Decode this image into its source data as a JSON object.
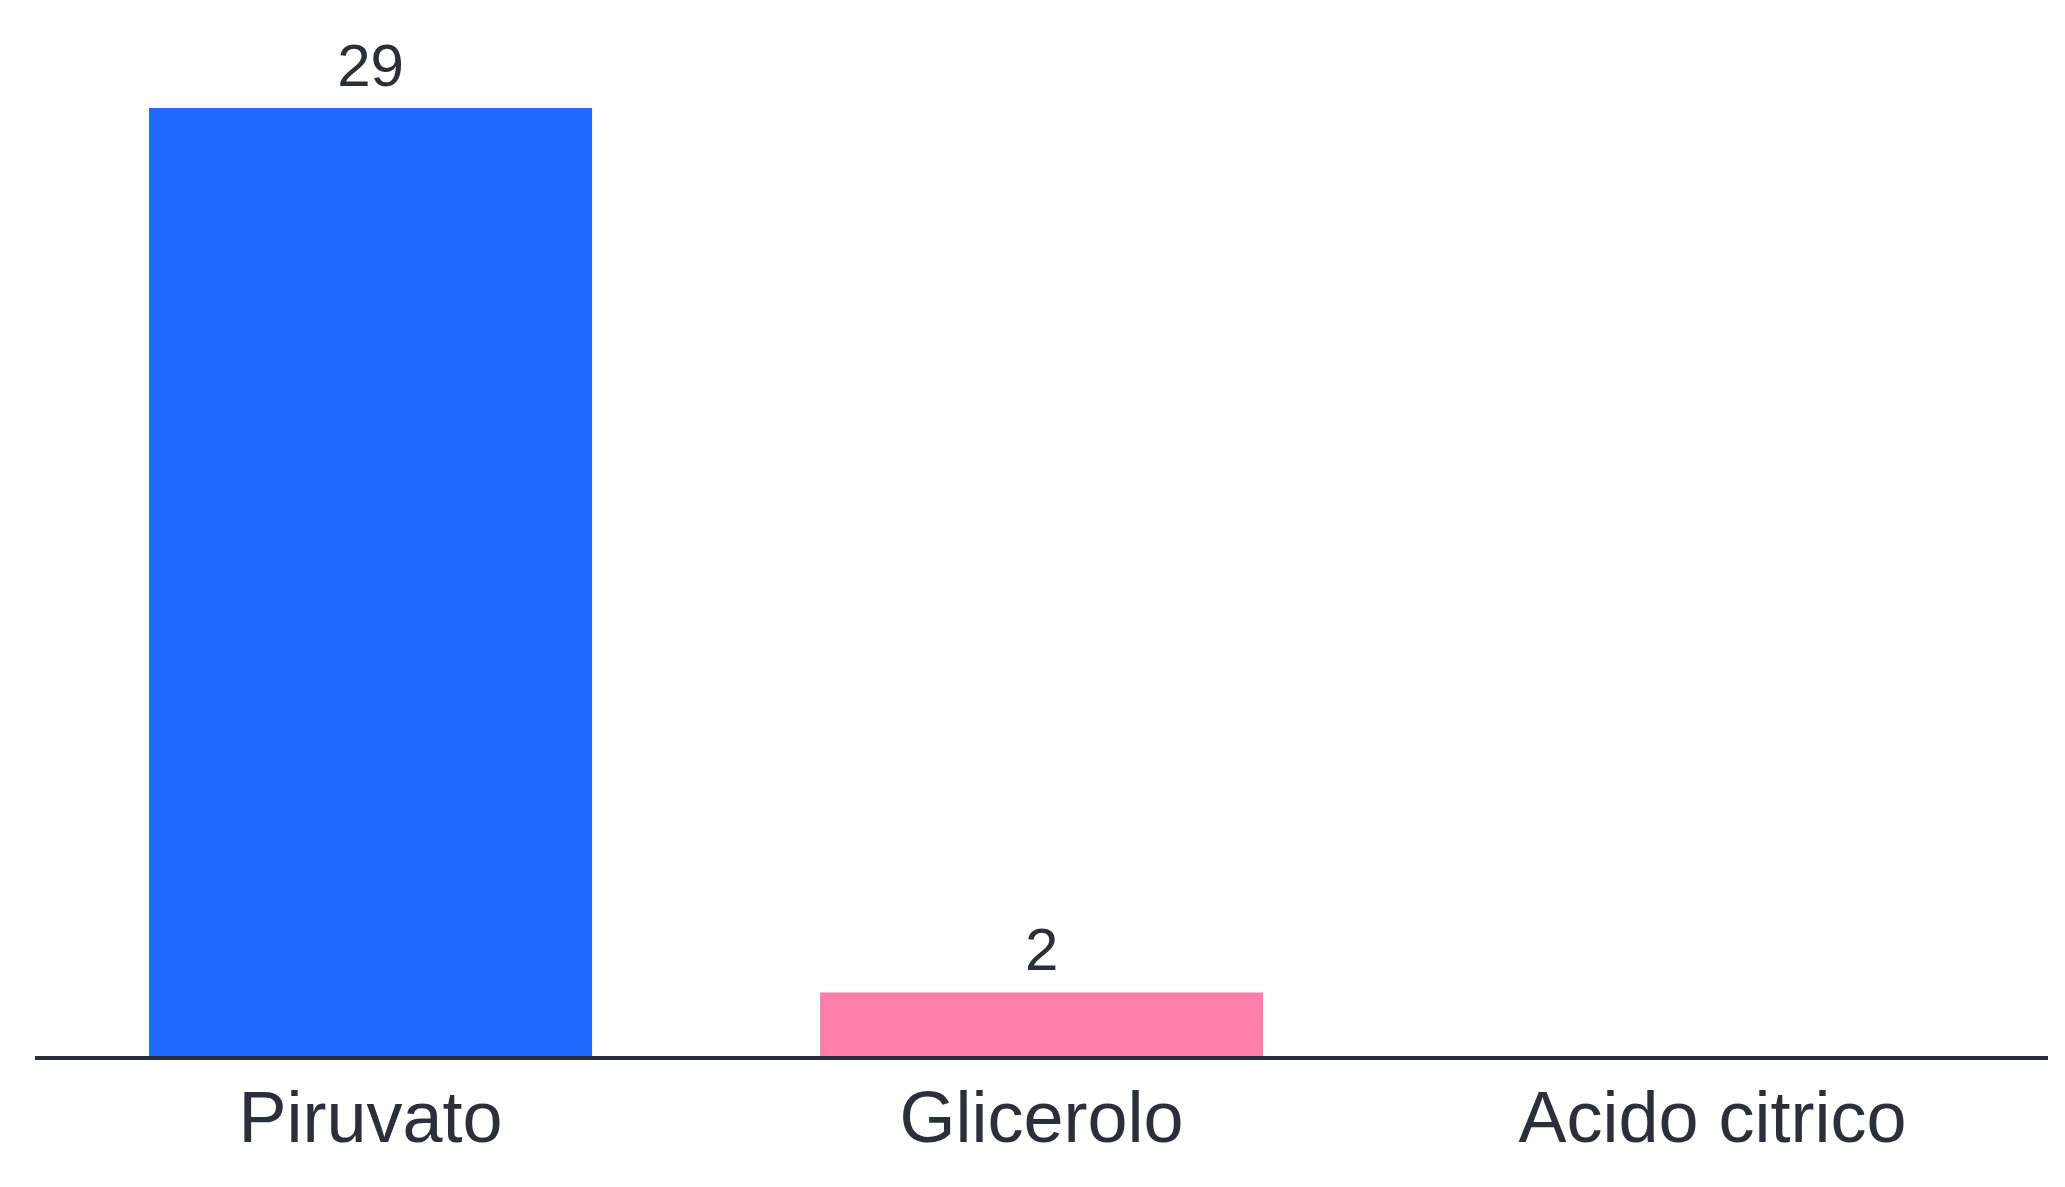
{
  "chart_data": {
    "type": "bar",
    "categories": [
      "Piruvato",
      "Glicerolo",
      "Acido citrico"
    ],
    "values": [
      29,
      2,
      null
    ],
    "colors": [
      "#1f6bff",
      "#ff7eaa",
      "#1f6bff"
    ],
    "data_labels": true
  }
}
